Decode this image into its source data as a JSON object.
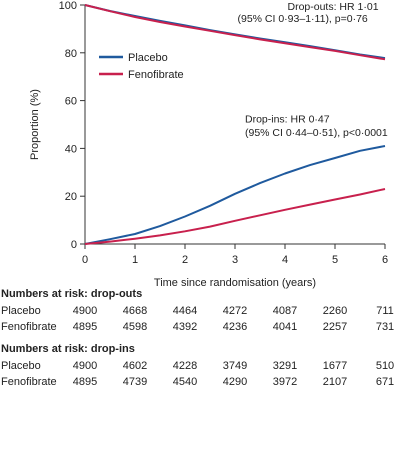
{
  "chart_data": {
    "type": "line",
    "title": "",
    "xlabel": "Time since randomisation (years)",
    "ylabel": "Proportion (%)",
    "xlim": [
      0,
      6
    ],
    "ylim": [
      0,
      100
    ],
    "xticks": [
      0,
      1,
      2,
      3,
      4,
      5,
      6
    ],
    "yticks": [
      0,
      20,
      40,
      60,
      80,
      100
    ],
    "grid": false,
    "legend_position": "upper-left",
    "series": [
      {
        "name": "Placebo",
        "group": "drop-outs",
        "color": "#1f5a9e",
        "x": [
          0,
          0.5,
          1,
          1.5,
          2,
          2.5,
          3,
          3.5,
          4,
          4.5,
          5,
          5.5,
          6
        ],
        "y": [
          100,
          97.5,
          95.4,
          93.4,
          91.5,
          89.5,
          87.7,
          86.0,
          84.4,
          82.8,
          81.1,
          79.3,
          77.8
        ]
      },
      {
        "name": "Fenofibrate",
        "group": "drop-outs",
        "color": "#c8204d",
        "x": [
          0,
          0.5,
          1,
          1.5,
          2,
          2.5,
          3,
          3.5,
          4,
          4.5,
          5,
          5.5,
          6
        ],
        "y": [
          100,
          97.4,
          95.0,
          92.9,
          91.0,
          89.2,
          87.4,
          85.6,
          84.0,
          82.4,
          80.8,
          79.0,
          77.3
        ]
      },
      {
        "name": "Placebo",
        "group": "drop-ins",
        "color": "#1f5a9e",
        "x": [
          0,
          0.5,
          1,
          1.5,
          2,
          2.5,
          3,
          3.5,
          4,
          4.5,
          5,
          5.5,
          6
        ],
        "y": [
          0,
          2.0,
          4.2,
          7.5,
          11.5,
          16.0,
          21.0,
          25.5,
          29.5,
          33.0,
          36.0,
          39.0,
          41.0
        ]
      },
      {
        "name": "Fenofibrate",
        "group": "drop-ins",
        "color": "#c8204d",
        "x": [
          0,
          0.5,
          1,
          1.5,
          2,
          2.5,
          3,
          3.5,
          4,
          4.5,
          5,
          5.5,
          6
        ],
        "y": [
          0,
          1.0,
          2.2,
          3.6,
          5.3,
          7.3,
          9.7,
          12.0,
          14.3,
          16.5,
          18.6,
          20.7,
          23.0
        ]
      }
    ],
    "annotations": [
      {
        "text": "Drop-outs: HR 1·01",
        "x": 4.05,
        "y": 99.5
      },
      {
        "text": "(95% CI 0·93–1·11), p=0·76",
        "x": 3.05,
        "y": 94.5
      },
      {
        "text": "Drop-ins: HR 0·47",
        "x": 3.2,
        "y": 52.5
      },
      {
        "text": "(95% CI 0·44–0·51), p<0·0001",
        "x": 3.2,
        "y": 46.8
      }
    ]
  },
  "risk_table": {
    "sections": [
      {
        "heading": "Numbers at risk: drop-outs",
        "rows": [
          {
            "label": "Placebo",
            "values": [
              "4900",
              "4668",
              "4464",
              "4272",
              "4087",
              "2260",
              "711"
            ]
          },
          {
            "label": "Fenofibrate",
            "values": [
              "4895",
              "4598",
              "4392",
              "4236",
              "4041",
              "2257",
              "731"
            ]
          }
        ]
      },
      {
        "heading": "Numbers at risk: drop-ins",
        "rows": [
          {
            "label": "Placebo",
            "values": [
              "4900",
              "4602",
              "4228",
              "3749",
              "3291",
              "1677",
              "510"
            ]
          },
          {
            "label": "Fenofibrate",
            "values": [
              "4895",
              "4739",
              "4540",
              "4290",
              "3972",
              "2107",
              "671"
            ]
          }
        ]
      }
    ]
  }
}
